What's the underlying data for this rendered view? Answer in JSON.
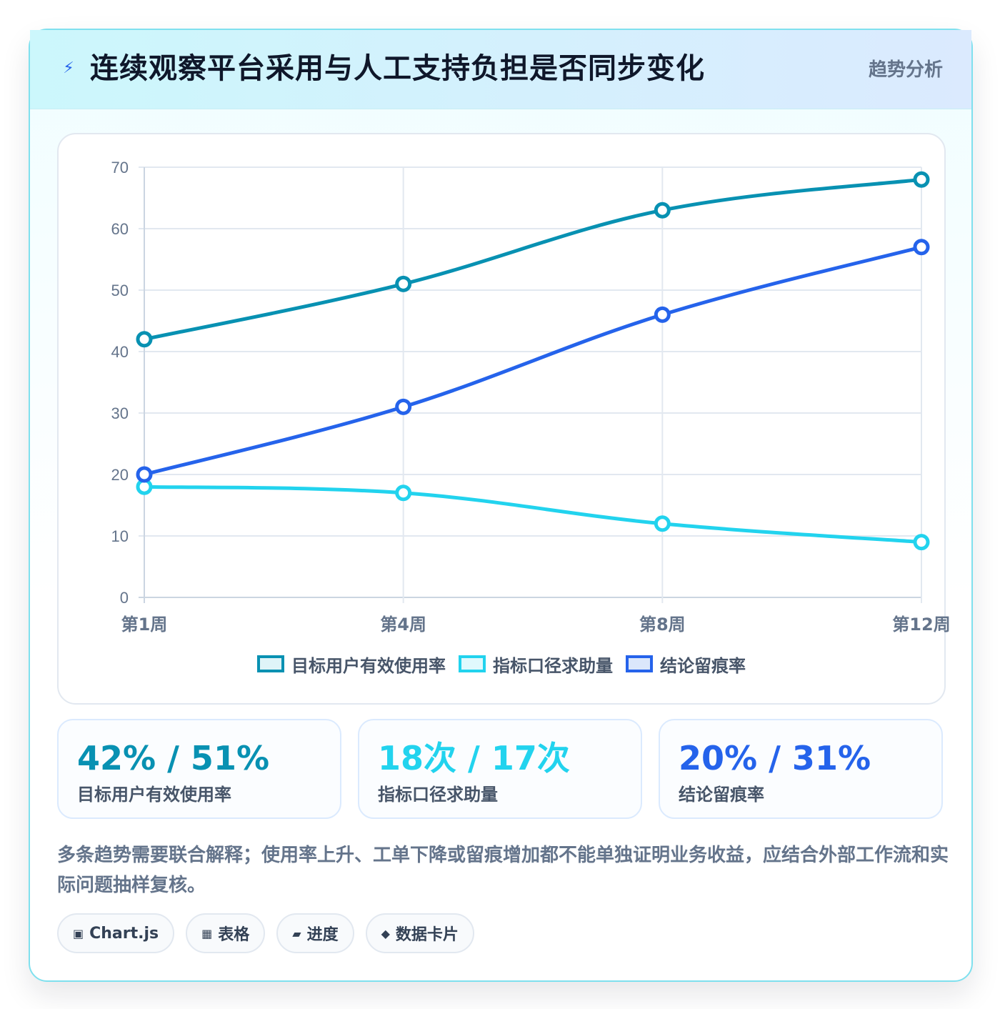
{
  "header": {
    "title": "连续观察平台采用与人工支持负担是否同步变化",
    "tag": "趋势分析",
    "icon": "bolt-icon"
  },
  "chart_data": {
    "type": "line",
    "categories": [
      "第1周",
      "第4周",
      "第8周",
      "第12周"
    ],
    "series": [
      {
        "name": "目标用户有效使用率",
        "values": [
          42,
          51,
          63,
          68
        ],
        "color": "#0891b2",
        "fill": "#dff4f8"
      },
      {
        "name": "指标口径求助量",
        "values": [
          18,
          17,
          12,
          9
        ],
        "color": "#22d3ee",
        "fill": "#e0f9fd"
      },
      {
        "name": "结论留痕率",
        "values": [
          20,
          31,
          46,
          57
        ],
        "color": "#2563eb",
        "fill": "#dbe7fb"
      }
    ],
    "ylim": [
      0,
      70
    ],
    "yticks": [
      0,
      10,
      20,
      30,
      40,
      50,
      60,
      70
    ],
    "grid": true,
    "legend": "bottom",
    "title": "",
    "xlabel": "",
    "ylabel": ""
  },
  "kpis": [
    {
      "value": "42% / 51%",
      "label": "目标用户有效使用率",
      "color": "#0891b2"
    },
    {
      "value": "18次 / 17次",
      "label": "指标口径求助量",
      "color": "#22d3ee"
    },
    {
      "value": "20% / 31%",
      "label": "结论留痕率",
      "color": "#2563eb"
    }
  ],
  "note": "多条趋势需要联合解释；使用率上升、工单下降或留痕增加都不能单独证明业务收益，应结合外部工作流和实际问题抽样复核。",
  "chips": [
    {
      "icon": "▣",
      "icon_name": "chart-icon",
      "label": "Chart.js"
    },
    {
      "icon": "▦",
      "icon_name": "table-icon",
      "label": "表格"
    },
    {
      "icon": "▰",
      "icon_name": "progress-icon",
      "label": "进度"
    },
    {
      "icon": "◆",
      "icon_name": "data-card-icon",
      "label": "数据卡片"
    }
  ]
}
